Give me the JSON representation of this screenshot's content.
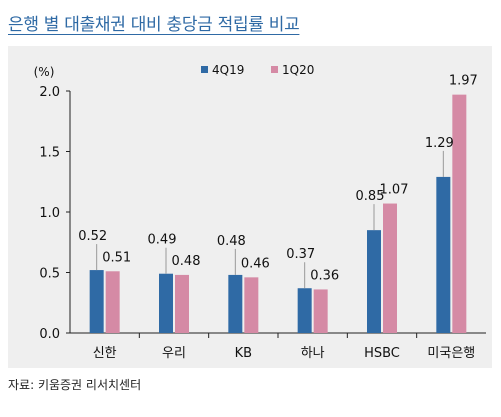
{
  "title": "은행 별 대출채권 대비 충당금 적립률 비교",
  "source": "자료: 키움증권 리서치센터",
  "chart_data": {
    "type": "bar",
    "title": "은행 별 대출채권 대비 충당금 적립률 비교",
    "ylabel": "(%)",
    "ylim": [
      0.0,
      2.0
    ],
    "yticks": [
      "0.0",
      "0.5",
      "1.0",
      "1.5",
      "2.0"
    ],
    "categories": [
      "신한",
      "우리",
      "KB",
      "하나",
      "HSBC",
      "미국은행"
    ],
    "series": [
      {
        "name": "4Q19",
        "values": [
          0.52,
          0.49,
          0.48,
          0.37,
          0.85,
          1.29
        ],
        "labels": [
          "0.52",
          "0.49",
          "0.48",
          "0.37",
          "0.85",
          "1.29"
        ],
        "color": "#2f6aa5"
      },
      {
        "name": "1Q20",
        "values": [
          0.51,
          0.48,
          0.46,
          0.36,
          1.07,
          1.97
        ],
        "labels": [
          "0.51",
          "0.48",
          "0.46",
          "0.36",
          "1.07",
          "1.97"
        ],
        "color": "#d58aa5"
      }
    ],
    "legend": "top-right",
    "grid": false
  }
}
